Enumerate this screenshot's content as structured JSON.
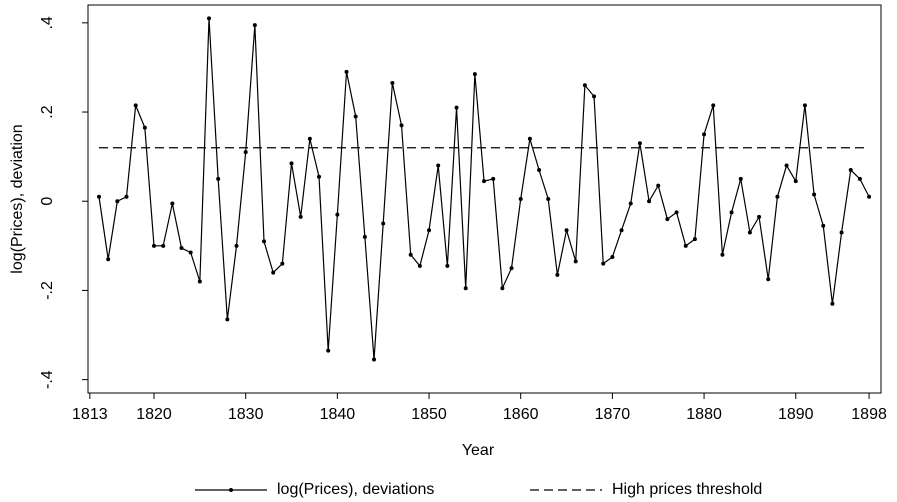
{
  "chart_data": {
    "type": "line",
    "xlabel": "Year",
    "ylabel": "log(Prices), deviation",
    "x": [
      1814,
      1815,
      1816,
      1817,
      1818,
      1819,
      1820,
      1821,
      1822,
      1823,
      1824,
      1825,
      1826,
      1827,
      1828,
      1829,
      1830,
      1831,
      1832,
      1833,
      1834,
      1835,
      1836,
      1837,
      1838,
      1839,
      1840,
      1841,
      1842,
      1843,
      1844,
      1845,
      1846,
      1847,
      1848,
      1849,
      1850,
      1851,
      1852,
      1853,
      1854,
      1855,
      1856,
      1857,
      1858,
      1859,
      1860,
      1861,
      1862,
      1863,
      1864,
      1865,
      1866,
      1867,
      1868,
      1869,
      1870,
      1871,
      1872,
      1873,
      1874,
      1875,
      1876,
      1877,
      1878,
      1879,
      1880,
      1881,
      1882,
      1883,
      1884,
      1885,
      1886,
      1887,
      1888,
      1889,
      1890,
      1891,
      1892,
      1893,
      1894,
      1895,
      1896,
      1897,
      1898
    ],
    "series": [
      {
        "name": "log(Prices), deviations",
        "color": "#000000",
        "marker": true,
        "values": [
          0.01,
          -0.13,
          0,
          0.01,
          0.215,
          0.165,
          -0.1,
          -0.1,
          -0.005,
          -0.105,
          -0.115,
          -0.18,
          0.41,
          0.05,
          -0.265,
          -0.1,
          0.11,
          0.395,
          -0.09,
          -0.16,
          -0.14,
          0.085,
          -0.035,
          0.14,
          0.055,
          -0.335,
          -0.03,
          0.29,
          0.19,
          -0.08,
          -0.355,
          -0.05,
          0.265,
          0.17,
          -0.12,
          -0.145,
          -0.065,
          0.08,
          -0.145,
          0.21,
          -0.195,
          0.285,
          0.045,
          0.05,
          -0.195,
          -0.15,
          0.005,
          0.14,
          0.07,
          0.005,
          -0.165,
          -0.065,
          -0.135,
          0.26,
          0.235,
          -0.14,
          -0.125,
          -0.065,
          -0.005,
          0.13,
          0,
          0.035,
          -0.04,
          -0.025,
          -0.1,
          -0.085,
          0.15,
          0.215,
          -0.12,
          -0.025,
          0.05,
          -0.07,
          -0.035,
          -0.175,
          0.01,
          0.08,
          0.045,
          0.215,
          0.015,
          -0.055,
          -0.23,
          -0.07,
          0.07,
          0.05,
          0.01
        ]
      }
    ],
    "hlines": [
      {
        "name": "High prices threshold",
        "value": 0.12,
        "color": "#000000",
        "dashed": true
      }
    ],
    "xlim": [
      1812.8,
      1899.3
    ],
    "xticks": [
      1813,
      1820,
      1830,
      1840,
      1850,
      1860,
      1870,
      1880,
      1890,
      1898
    ],
    "ylim": [
      -0.43,
      0.44
    ],
    "yticks": [
      {
        "value": -0.4,
        "label": "-.4"
      },
      {
        "value": -0.2,
        "label": "-.2"
      },
      0,
      {
        "value": 0.2,
        "label": ".2"
      },
      {
        "value": 0.4,
        "label": ".4"
      }
    ],
    "grid": false,
    "legend": "bottom"
  }
}
